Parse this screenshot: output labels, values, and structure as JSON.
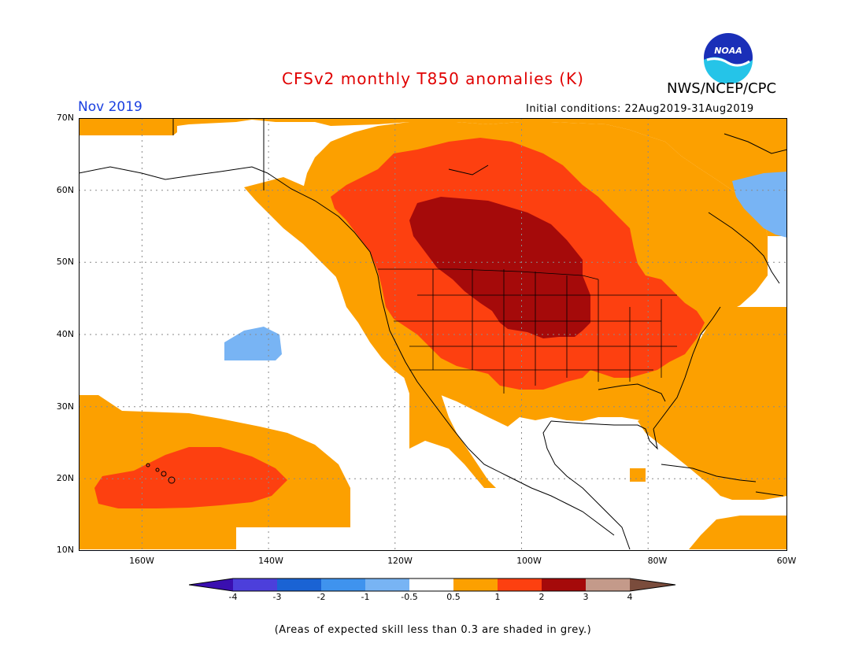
{
  "header": {
    "title": "CFSv2 monthly T850 anomalies (K)",
    "agency": "NWS/NCEP/CPC",
    "logo_text": "NOAA",
    "valid_month": "Nov 2019",
    "initial_conditions": "Initial conditions: 22Aug2019-31Aug2019"
  },
  "axes": {
    "lat_labels": [
      "70N",
      "60N",
      "50N",
      "40N",
      "30N",
      "20N",
      "10N"
    ],
    "lon_labels": [
      "160W",
      "140W",
      "120W",
      "100W",
      "80W",
      "60W"
    ],
    "lat_range": [
      10,
      70
    ],
    "lon_range": [
      -172,
      -60
    ]
  },
  "colorbar": {
    "labels": [
      "-4",
      "-3",
      "-2",
      "-1",
      "-0.5",
      "0.5",
      "1",
      "2",
      "3",
      "4"
    ],
    "colors": [
      "#3a0fb0",
      "#4c3fdb",
      "#1a63d4",
      "#3f93ee",
      "#78b4f4",
      "#ffffff",
      "#fca000",
      "#fd4010",
      "#a50a0a",
      "#c49a8a",
      "#7a4c3c"
    ]
  },
  "footer": {
    "skill_note": "(Areas of expected skill less than 0.3 are shaded in grey.)"
  },
  "legend_colors": {
    "anom_0_5_1": "#fca000",
    "anom_1_2": "#fd4010",
    "anom_2_3": "#a50a0a",
    "anom_neg_0_5_1": "#78b4f4"
  }
}
